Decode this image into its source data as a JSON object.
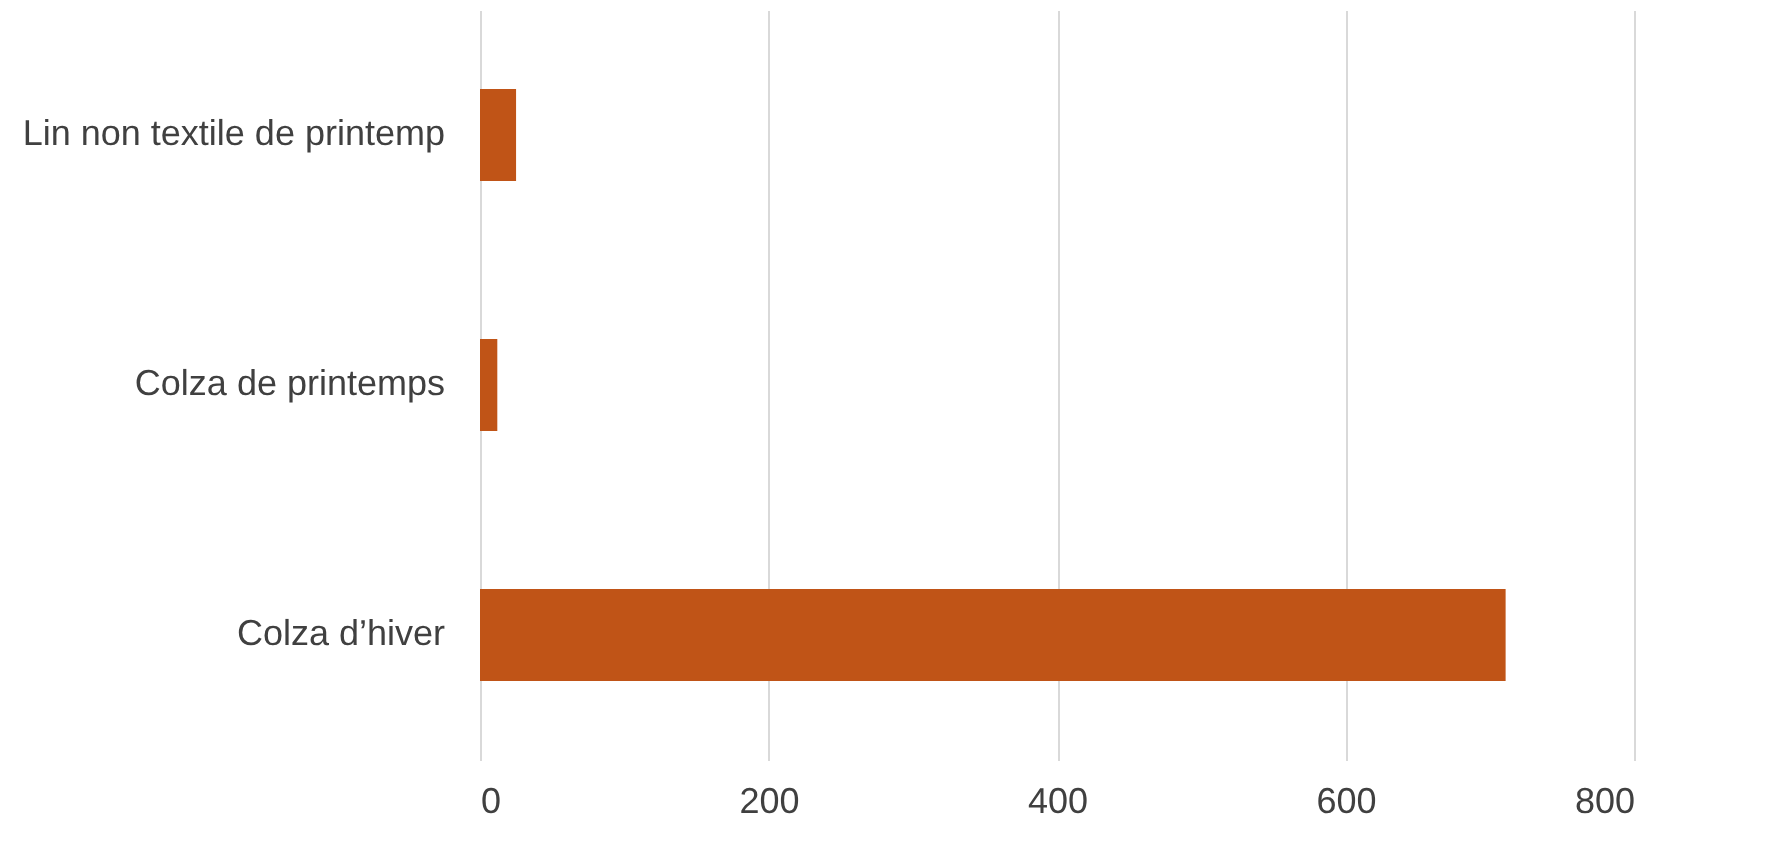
{
  "chart_data": {
    "type": "bar",
    "orientation": "horizontal",
    "categories": [
      "Lin non textile de printemp",
      "Colza de printemps",
      "Colza d’hiver"
    ],
    "values": [
      25,
      12,
      711
    ],
    "color": "#c05417",
    "xlim": [
      0,
      800
    ],
    "xticks": [
      0,
      200,
      400,
      600,
      800
    ],
    "grid": "x"
  }
}
